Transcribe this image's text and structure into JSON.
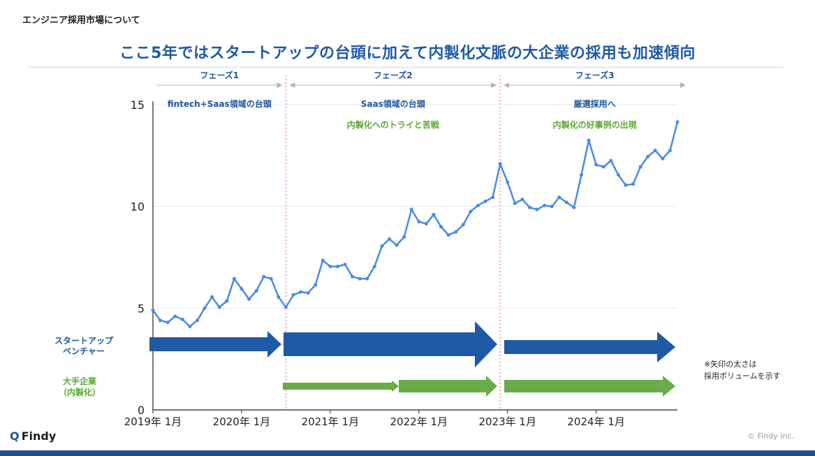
{
  "header": {
    "breadcrumb": "エンジニア採用市場について",
    "title": "ここ5年ではスタートアップの台頭に加えて内製化文脈の大企業の採用も加速傾向"
  },
  "footer": {
    "logo": "Findy",
    "copyright": "© Findy Inc."
  },
  "colors": {
    "line": "#4a8ae6",
    "startup_arrow": "#1e5aa6",
    "enterprise_arrow": "#6aab4a",
    "title": "#1f5aa6",
    "divider": "#e06a6a",
    "phase_arrow": "#b5b5b5"
  },
  "phases": [
    {
      "label": "フェーズ1",
      "startup_note": "fintech+Saas領域の台頭",
      "enterprise_note": ""
    },
    {
      "label": "フェーズ2",
      "startup_note": "Saas領域の台頭",
      "enterprise_note": "内製化へのトライと苦戦"
    },
    {
      "label": "フェーズ3",
      "startup_note": "厳選採用へ",
      "enterprise_note": "内製化の好事例の出現"
    }
  ],
  "row_labels": {
    "startup_line1": "スタートアップ",
    "startup_line2": "ベンチャー",
    "enterprise_line1": "大手企業",
    "enterprise_line2": "（内製化）"
  },
  "arrow_note": {
    "line1": "※矢印の太さは",
    "line2": "採用ボリュームを示す"
  },
  "chart_data": {
    "type": "line",
    "title": "",
    "xlabel": "",
    "ylabel": "",
    "ylim": [
      0,
      15
    ],
    "yticks": [
      0,
      5,
      10,
      15
    ],
    "grid": true,
    "x_tick_labels": [
      "2019年 1月",
      "2020年 1月",
      "2021年 1月",
      "2022年 1月",
      "2023年 1月",
      "2024年 1月"
    ],
    "x_start": "2019-01",
    "phase_boundaries": [
      "2020-07",
      "2022-12"
    ],
    "series": [
      {
        "values": [
          4.9,
          4.4,
          4.3,
          4.6,
          4.45,
          4.1,
          4.4,
          5.0,
          5.55,
          5.05,
          5.35,
          6.45,
          5.95,
          5.45,
          5.85,
          6.55,
          6.45,
          5.55,
          5.05,
          5.65,
          5.8,
          5.75,
          6.15,
          7.35,
          7.05,
          7.05,
          7.15,
          6.55,
          6.45,
          6.45,
          7.05,
          8.05,
          8.4,
          8.1,
          8.5,
          9.85,
          9.25,
          9.15,
          9.6,
          9.0,
          8.6,
          8.75,
          9.1,
          9.75,
          10.05,
          10.25,
          10.45,
          12.1,
          11.2,
          10.15,
          10.35,
          9.95,
          9.85,
          10.05,
          10.0,
          10.45,
          10.2,
          9.95,
          11.55,
          13.25,
          12.05,
          11.95,
          12.25,
          11.55,
          11.05,
          11.1,
          11.95,
          12.45,
          12.75,
          12.35,
          12.75,
          14.15
        ]
      }
    ]
  }
}
